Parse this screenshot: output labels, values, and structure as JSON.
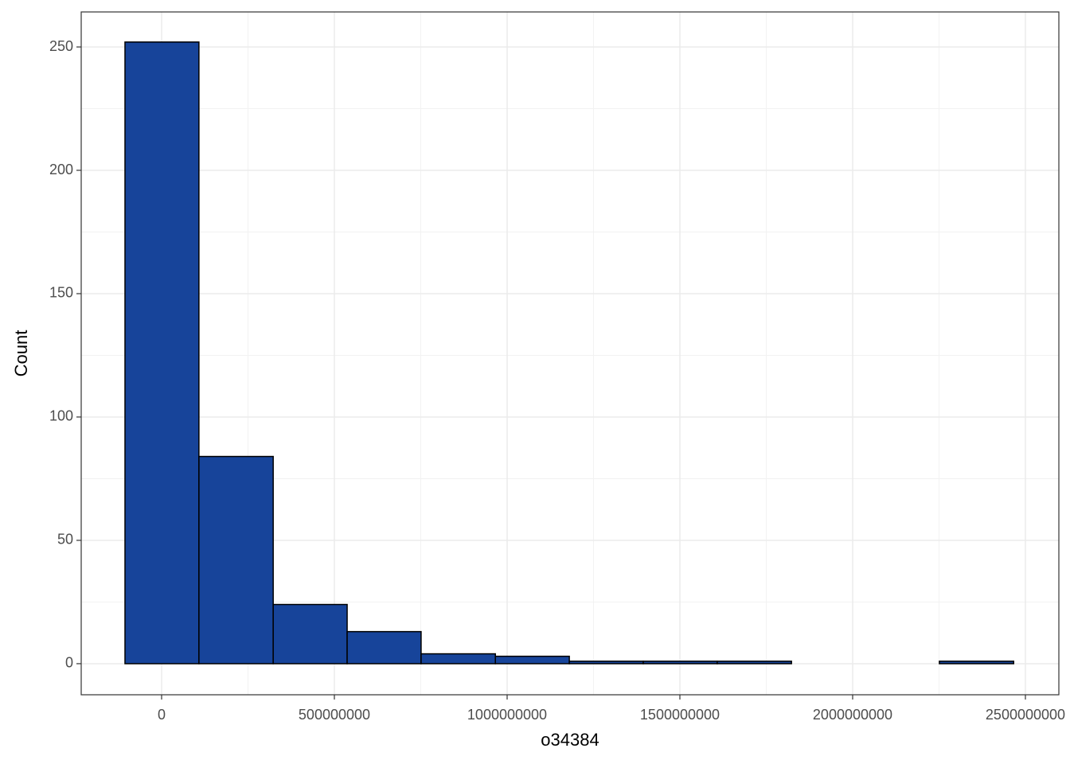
{
  "chart_data": {
    "type": "histogram",
    "x_label": "o34384",
    "y_label": "Count",
    "bins": [
      -106000000,
      108000000,
      323000000,
      537000000,
      751000000,
      966000000,
      1180000000,
      1394000000,
      1608000000,
      1823000000,
      2037000000,
      2251000000,
      2466000000
    ],
    "counts": [
      252,
      84,
      24,
      13,
      4,
      3,
      1,
      1,
      1,
      0,
      0,
      1
    ],
    "color": "#17449a",
    "edge_color": "#000000",
    "xlim": [
      -232700000,
      2596800000
    ],
    "ylim": [
      -12.6,
      264.2
    ],
    "xticks": [
      0,
      500000000,
      1000000000,
      1500000000,
      2000000000,
      2500000000
    ],
    "yticks": [
      0,
      50,
      100,
      150,
      200,
      250
    ],
    "grid": true
  }
}
